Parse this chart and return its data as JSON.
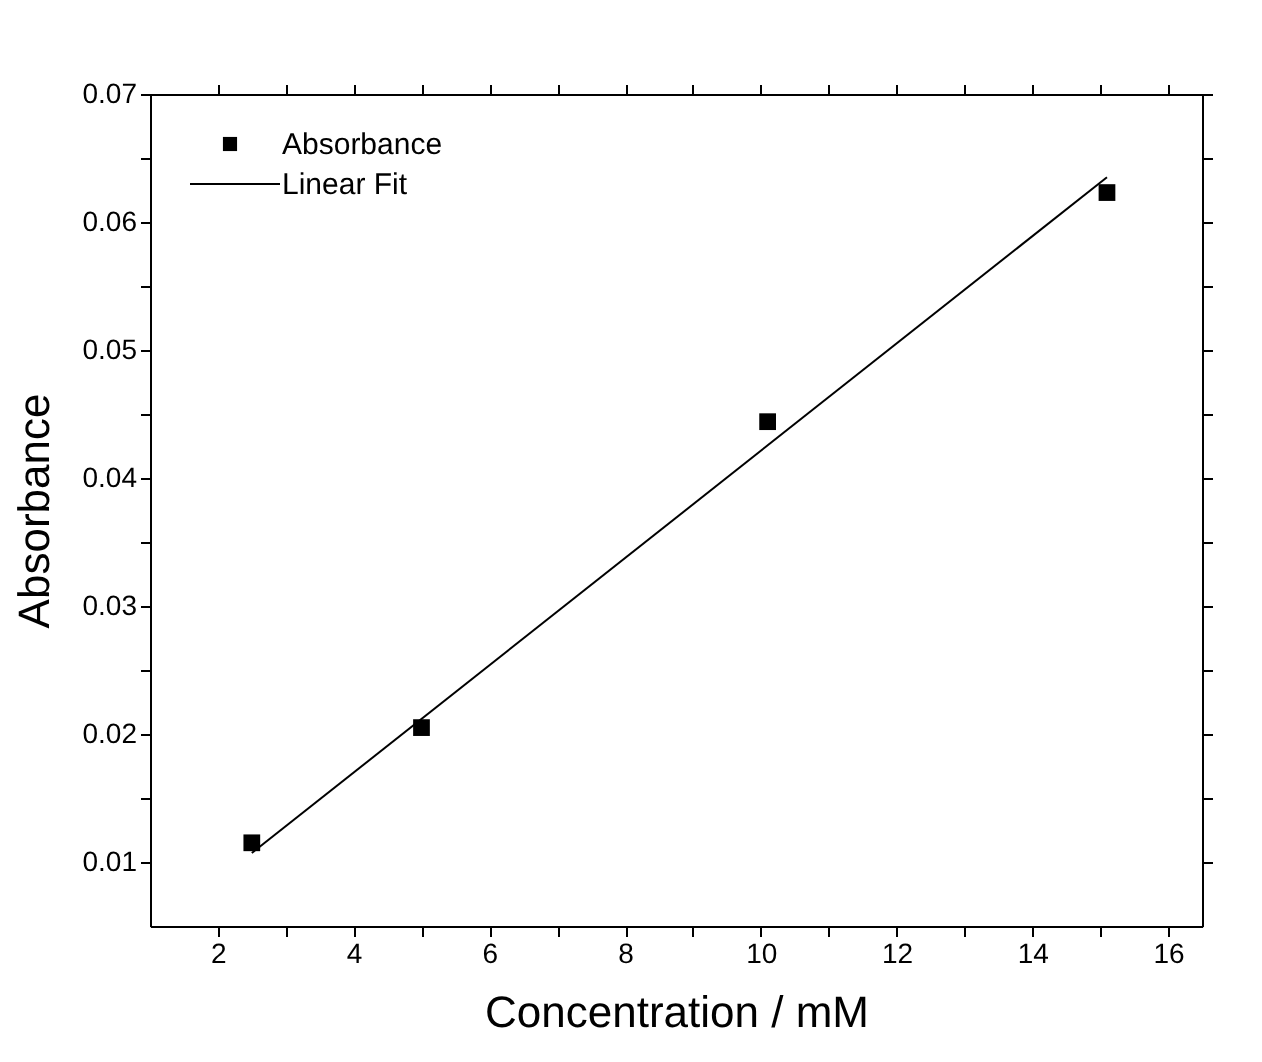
{
  "chart_data": {
    "type": "scatter",
    "xlabel": "Concentration / mM",
    "ylabel": "Absorbance",
    "xlim": [
      1,
      16.5
    ],
    "ylim": [
      0.005,
      0.07
    ],
    "xticks": [
      2,
      {
        "value": 3,
        "label": null
      },
      4,
      {
        "value": 5,
        "label": null
      },
      6,
      {
        "value": 7,
        "label": null
      },
      8,
      {
        "value": 9,
        "label": null
      },
      10,
      {
        "value": 11,
        "label": null
      },
      12,
      {
        "value": 13,
        "label": null
      },
      14,
      {
        "value": 15,
        "label": null
      },
      16
    ],
    "yticks": [
      0.01,
      {
        "value": 0.015,
        "label": null
      },
      0.02,
      {
        "value": 0.025,
        "label": null
      },
      0.03,
      {
        "value": 0.035,
        "label": null
      },
      0.04,
      {
        "value": 0.045,
        "label": null
      },
      0.05,
      {
        "value": 0.055,
        "label": null
      },
      0.06,
      {
        "value": 0.065,
        "label": null
      },
      0.07
    ],
    "series": [
      {
        "name": "Absorbance",
        "color": "#000000",
        "marker": "square",
        "x": [
          2.5,
          5.0,
          10.1,
          15.1
        ],
        "values": [
          0.0115,
          0.0205,
          0.0444,
          0.0623
        ]
      },
      {
        "name": "Linear Fit",
        "type": "line",
        "color": "#000000",
        "line_style": "solid",
        "x": [
          2.5,
          15.1
        ],
        "values": [
          0.0107,
          0.0635
        ]
      }
    ],
    "legend": "top left",
    "grid": false
  }
}
